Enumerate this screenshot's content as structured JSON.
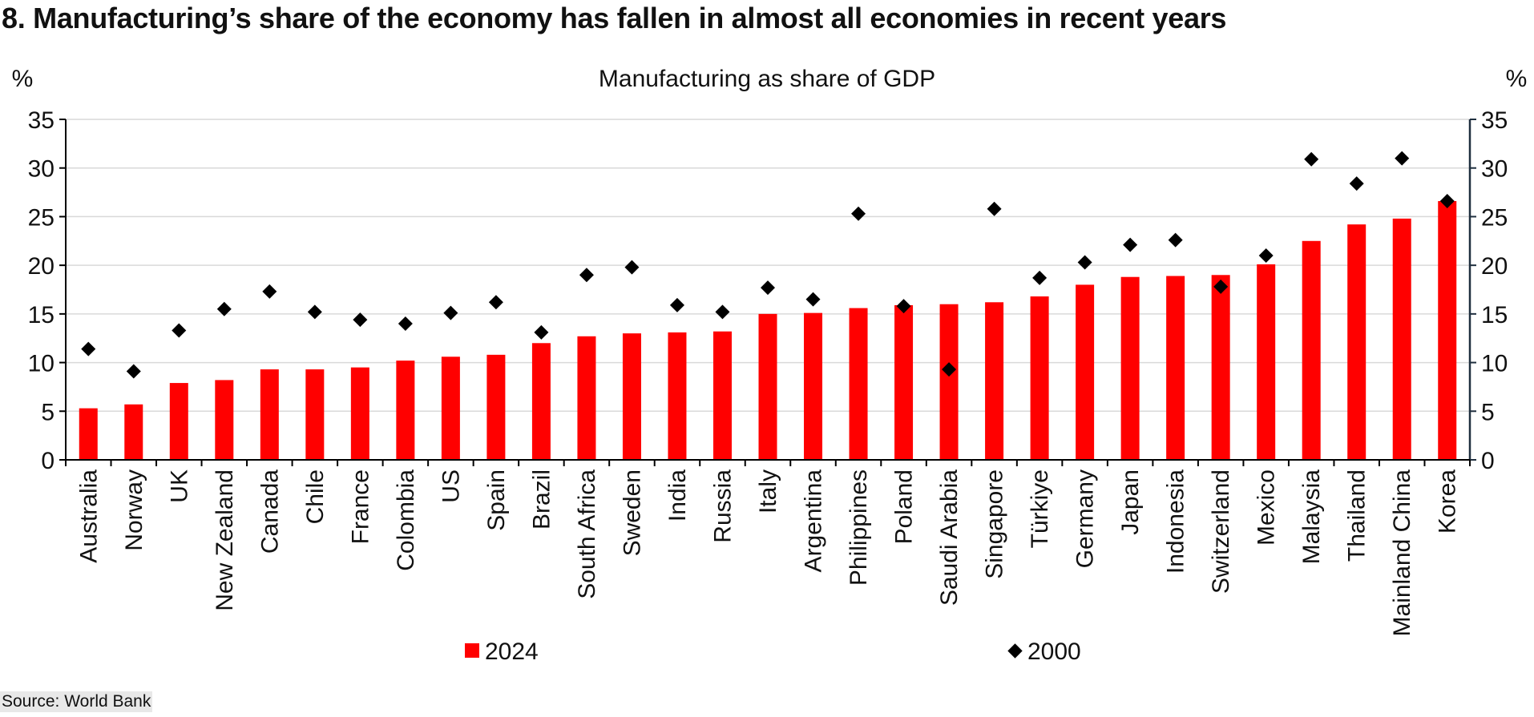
{
  "heading": "8. Manufacturing’s share of the economy has fallen in almost all economies in recent years",
  "source": "Source: World Bank",
  "colors": {
    "bar": "#ff0000",
    "marker": "#000000",
    "grid": "#d9d9d9",
    "axis": "#000000",
    "right_axis": "#1f2f3f"
  },
  "chart_data": {
    "type": "bar",
    "title": "Manufacturing as share of GDP",
    "ylabel_left": "%",
    "ylabel_right": "%",
    "ylim": [
      0,
      35
    ],
    "yticks": [
      0,
      5,
      10,
      15,
      20,
      25,
      30,
      35
    ],
    "grid": true,
    "legend_position": "bottom",
    "categories": [
      "Australia",
      "Norway",
      "UK",
      "New Zealand",
      "Canada",
      "Chile",
      "France",
      "Colombia",
      "US",
      "Spain",
      "Brazil",
      "South Africa",
      "Sweden",
      "India",
      "Russia",
      "Italy",
      "Argentina",
      "Philippines",
      "Poland",
      "Saudi Arabia",
      "Singapore",
      "Türkiye",
      "Germany",
      "Japan",
      "Indonesia",
      "Switzerland",
      "Mexico",
      "Malaysia",
      "Thailand",
      "Mainland China",
      "Korea"
    ],
    "series": [
      {
        "name": "2024",
        "kind": "bar",
        "color": "#ff0000",
        "values": [
          5.3,
          5.7,
          7.9,
          8.2,
          9.3,
          9.3,
          9.5,
          10.2,
          10.6,
          10.8,
          12.0,
          12.7,
          13.0,
          13.1,
          13.2,
          15.0,
          15.1,
          15.6,
          15.9,
          16.0,
          16.2,
          16.8,
          18.0,
          18.8,
          18.9,
          19.0,
          20.1,
          22.5,
          24.2,
          24.8,
          26.6
        ]
      },
      {
        "name": "2000",
        "kind": "marker",
        "marker": "diamond",
        "color": "#000000",
        "values": [
          11.4,
          9.1,
          13.3,
          15.5,
          17.3,
          15.2,
          14.4,
          14.0,
          15.1,
          16.2,
          13.1,
          19.0,
          19.8,
          15.9,
          15.2,
          17.7,
          16.5,
          25.3,
          15.8,
          9.3,
          25.8,
          18.7,
          20.3,
          22.1,
          22.6,
          17.8,
          21.0,
          30.9,
          28.4,
          31.0,
          26.6
        ]
      }
    ]
  }
}
